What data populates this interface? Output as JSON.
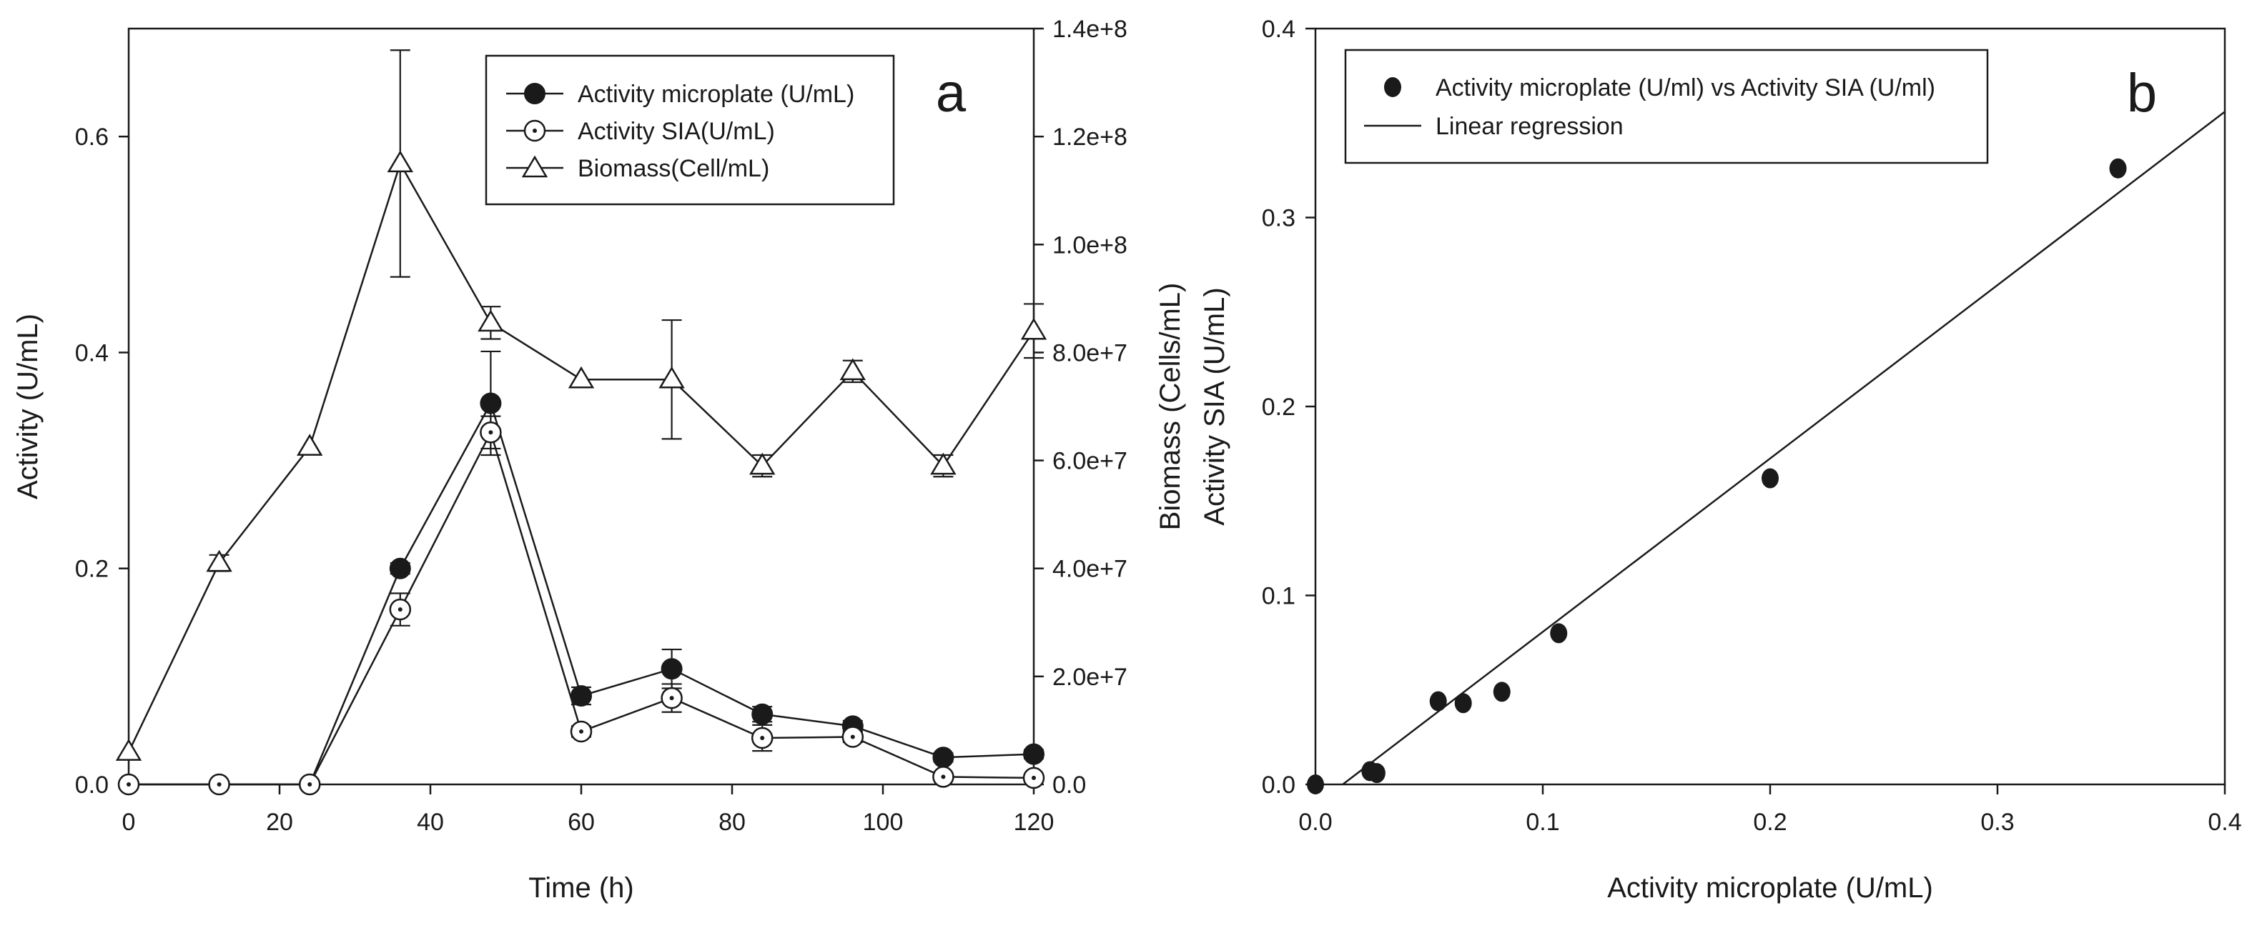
{
  "chart_data": [
    {
      "type": "line",
      "panel_label": "a",
      "xlabel": "Time (h)",
      "ylabel": "Activity (U/mL)",
      "y2label": "Biomass (Cells/mL)",
      "xlim": [
        0,
        120
      ],
      "ylim": [
        0,
        0.7
      ],
      "y2lim": [
        0,
        140000000
      ],
      "x_ticks": [
        "0",
        "20",
        "40",
        "60",
        "80",
        "100",
        "120"
      ],
      "y_ticks": [
        "0.0",
        "0.2",
        "0.4",
        "0.6"
      ],
      "y2_ticks": [
        "0.0",
        "2.0e+7",
        "4.0e+7",
        "6.0e+7",
        "8.0e+7",
        "1.0e+8",
        "1.2e+8",
        "1.4e+8"
      ],
      "legend": [
        "Activity microplate (U/mL)",
        "Activity SIA(U/mL)",
        "Biomass(Cell/mL)"
      ],
      "series": [
        {
          "name": "Activity microplate (U/mL)",
          "axis": "left",
          "marker": "filled-circle",
          "x": [
            0,
            12,
            24,
            36,
            48,
            60,
            72,
            84,
            96,
            108,
            120
          ],
          "values": [
            0.0,
            0.0,
            0.0,
            0.2,
            0.353,
            0.082,
            0.107,
            0.065,
            0.054,
            0.025,
            0.028
          ],
          "errors": [
            0,
            0,
            0,
            0.005,
            0.048,
            0.008,
            0.018,
            0.007,
            0.005,
            0.004,
            0.004
          ]
        },
        {
          "name": "Activity SIA(U/mL)",
          "axis": "left",
          "marker": "open-dot-circle",
          "x": [
            0,
            12,
            24,
            36,
            48,
            60,
            72,
            84,
            96,
            108,
            120
          ],
          "values": [
            0.0,
            0.0,
            0.0,
            0.162,
            0.326,
            0.049,
            0.08,
            0.043,
            0.044,
            0.007,
            0.006
          ],
          "errors": [
            0,
            0,
            0,
            0.015,
            0.015,
            0.005,
            0.013,
            0.012,
            0.005,
            0.003,
            0.003
          ]
        },
        {
          "name": "Biomass(Cell/mL)",
          "axis": "right",
          "marker": "open-triangle",
          "x": [
            0,
            12,
            24,
            36,
            48,
            60,
            72,
            84,
            96,
            108,
            120
          ],
          "values": [
            6000000,
            41000000,
            62500000,
            115000000,
            85500000,
            75000000,
            75000000,
            59000000,
            76500000,
            59000000,
            84000000
          ],
          "errors": [
            0,
            1500000,
            0,
            21000000,
            3000000,
            0,
            11000000,
            2000000,
            2000000,
            2000000,
            5000000
          ]
        }
      ]
    },
    {
      "type": "scatter",
      "panel_label": "b",
      "xlabel": "Activity microplate (U/mL)",
      "ylabel": "Activity SIA (U/mL)",
      "xlim": [
        0,
        0.4
      ],
      "ylim": [
        0,
        0.4
      ],
      "x_ticks": [
        "0.0",
        "0.1",
        "0.2",
        "0.3",
        "0.4"
      ],
      "y_ticks": [
        "0.0",
        "0.1",
        "0.2",
        "0.3",
        "0.4"
      ],
      "legend": [
        "Activity microplate (U/ml) vs Activity SIA (U/ml)",
        "Linear regression"
      ],
      "points": {
        "x": [
          0.0,
          0.024,
          0.027,
          0.054,
          0.065,
          0.082,
          0.107,
          0.2,
          0.353
        ],
        "y": [
          0.0,
          0.007,
          0.006,
          0.044,
          0.043,
          0.049,
          0.08,
          0.162,
          0.326
        ]
      },
      "regression": {
        "x": [
          0.012,
          0.4
        ],
        "y": [
          0.0,
          0.356
        ]
      }
    }
  ]
}
